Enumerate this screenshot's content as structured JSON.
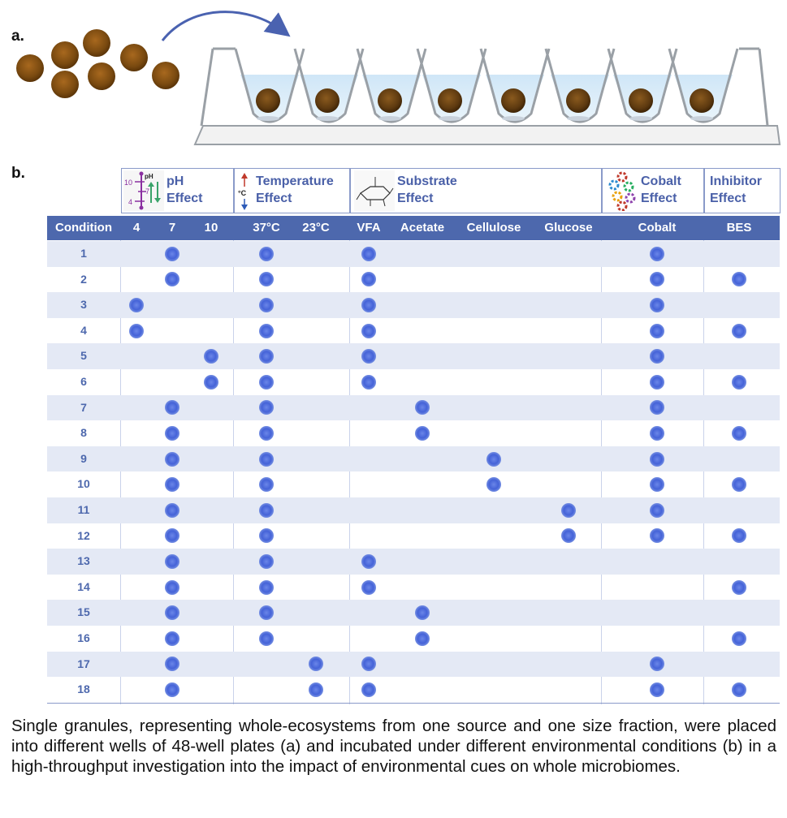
{
  "panel_a_label": "a.",
  "panel_b_label": "b.",
  "categories": {
    "ph": {
      "line1": "pH",
      "line2": "Effect"
    },
    "temperature": {
      "line1": "Temperature",
      "line2": "Effect"
    },
    "substrate": {
      "line1": "Substrate",
      "line2": "Effect"
    },
    "cobalt": {
      "line1": "Cobalt",
      "line2": "Effect"
    },
    "inhibitor": {
      "line1": "Inhibitor",
      "line2": "Effect"
    }
  },
  "ph_icon_text": {
    "ph": "pH",
    "t10": "10",
    "t7": "7",
    "t4": "4"
  },
  "temp_icon_text": "°C",
  "table": {
    "condition_header": "Condition",
    "columns": [
      "4",
      "7",
      "10",
      "37°C",
      "23°C",
      "VFA",
      "Acetate",
      "Cellulose",
      "Glucose",
      "Cobalt",
      "BES"
    ],
    "conditions": [
      "1",
      "2",
      "3",
      "4",
      "5",
      "6",
      "7",
      "8",
      "9",
      "10",
      "11",
      "12",
      "13",
      "14",
      "15",
      "16",
      "17",
      "18"
    ],
    "marks": [
      [
        0,
        1,
        0,
        1,
        0,
        1,
        0,
        0,
        0,
        1,
        0
      ],
      [
        0,
        1,
        0,
        1,
        0,
        1,
        0,
        0,
        0,
        1,
        1
      ],
      [
        1,
        0,
        0,
        1,
        0,
        1,
        0,
        0,
        0,
        1,
        0
      ],
      [
        1,
        0,
        0,
        1,
        0,
        1,
        0,
        0,
        0,
        1,
        1
      ],
      [
        0,
        0,
        1,
        1,
        0,
        1,
        0,
        0,
        0,
        1,
        0
      ],
      [
        0,
        0,
        1,
        1,
        0,
        1,
        0,
        0,
        0,
        1,
        1
      ],
      [
        0,
        1,
        0,
        1,
        0,
        0,
        1,
        0,
        0,
        1,
        0
      ],
      [
        0,
        1,
        0,
        1,
        0,
        0,
        1,
        0,
        0,
        1,
        1
      ],
      [
        0,
        1,
        0,
        1,
        0,
        0,
        0,
        1,
        0,
        1,
        0
      ],
      [
        0,
        1,
        0,
        1,
        0,
        0,
        0,
        1,
        0,
        1,
        1
      ],
      [
        0,
        1,
        0,
        1,
        0,
        0,
        0,
        0,
        1,
        1,
        0
      ],
      [
        0,
        1,
        0,
        1,
        0,
        0,
        0,
        0,
        1,
        1,
        1
      ],
      [
        0,
        1,
        0,
        1,
        0,
        1,
        0,
        0,
        0,
        0,
        0
      ],
      [
        0,
        1,
        0,
        1,
        0,
        1,
        0,
        0,
        0,
        0,
        1
      ],
      [
        0,
        1,
        0,
        1,
        0,
        0,
        1,
        0,
        0,
        0,
        0
      ],
      [
        0,
        1,
        0,
        1,
        0,
        0,
        1,
        0,
        0,
        0,
        1
      ],
      [
        0,
        1,
        0,
        0,
        1,
        1,
        0,
        0,
        0,
        1,
        0
      ],
      [
        0,
        1,
        0,
        0,
        1,
        1,
        0,
        0,
        0,
        1,
        1
      ]
    ]
  },
  "caption": "Single granules, representing whole-ecosystems from one source and one size fraction, were placed into different wells of 48-well plates (a) and incubated under different environmental conditions (b) in a high-throughput investigation into the impact of environmental cues on whole microbiomes.",
  "colors": {
    "header": "#4d68ad",
    "row_band": "#e4e9f5",
    "label": "#4a60a8",
    "granule": "#7a4a10",
    "dot": "#4563d8"
  }
}
